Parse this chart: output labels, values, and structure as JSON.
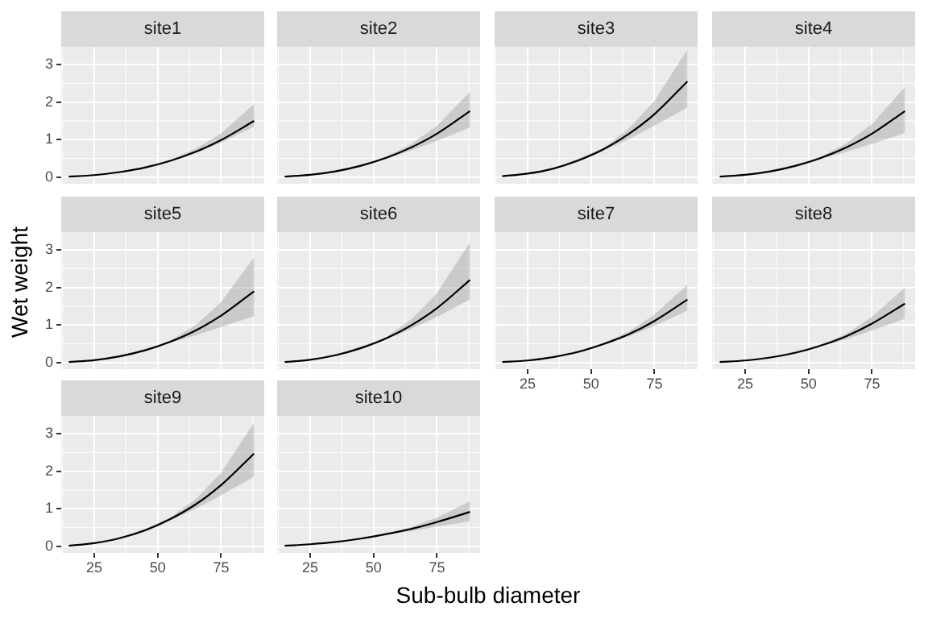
{
  "chart_data": [
    {
      "type": "line",
      "title": "site1",
      "x": [
        15,
        25,
        35,
        45,
        55,
        65,
        75,
        88
      ],
      "series": [
        {
          "color": "#000000",
          "values": [
            0.02,
            0.06,
            0.14,
            0.26,
            0.44,
            0.68,
            0.99,
            1.5
          ],
          "lower": [
            0.01,
            0.05,
            0.12,
            0.24,
            0.42,
            0.65,
            0.92,
            1.35
          ],
          "upper": [
            0.02,
            0.07,
            0.15,
            0.29,
            0.46,
            0.76,
            1.17,
            1.95
          ]
        }
      ],
      "xlim": [
        12,
        92
      ],
      "xticks": [
        25,
        50,
        75
      ],
      "ylim": [
        -0.17,
        3.47
      ],
      "yticks": [
        0,
        1,
        2,
        3
      ],
      "grid": true,
      "tick_labels": "y"
    },
    {
      "type": "line",
      "title": "site2",
      "x": [
        15,
        25,
        35,
        45,
        55,
        65,
        75,
        88
      ],
      "series": [
        {
          "color": "#000000",
          "values": [
            0.02,
            0.07,
            0.16,
            0.31,
            0.52,
            0.8,
            1.16,
            1.76
          ],
          "lower": [
            0.02,
            0.06,
            0.14,
            0.28,
            0.49,
            0.72,
            0.97,
            1.33
          ],
          "upper": [
            0.02,
            0.08,
            0.18,
            0.34,
            0.55,
            0.89,
            1.37,
            2.27
          ]
        }
      ],
      "xlim": [
        12,
        92
      ],
      "xticks": [
        25,
        50,
        75
      ],
      "ylim": [
        -0.17,
        3.47
      ],
      "yticks": [
        0,
        1,
        2,
        3
      ],
      "grid": true,
      "tick_labels": false
    },
    {
      "type": "line",
      "title": "site3",
      "x": [
        15,
        25,
        35,
        45,
        55,
        65,
        75,
        88
      ],
      "series": [
        {
          "color": "#000000",
          "values": [
            0.03,
            0.1,
            0.23,
            0.45,
            0.75,
            1.16,
            1.68,
            2.55
          ],
          "lower": [
            0.02,
            0.09,
            0.21,
            0.41,
            0.71,
            1.02,
            1.37,
            1.86
          ],
          "upper": [
            0.03,
            0.11,
            0.25,
            0.5,
            0.79,
            1.3,
            2.03,
            3.4
          ]
        }
      ],
      "xlim": [
        12,
        92
      ],
      "xticks": [
        25,
        50,
        75
      ],
      "ylim": [
        -0.17,
        3.47
      ],
      "yticks": [
        0,
        1,
        2,
        3
      ],
      "grid": true,
      "tick_labels": false
    },
    {
      "type": "line",
      "title": "site4",
      "x": [
        15,
        25,
        35,
        45,
        55,
        65,
        75,
        88
      ],
      "series": [
        {
          "color": "#000000",
          "values": [
            0.02,
            0.07,
            0.16,
            0.31,
            0.52,
            0.8,
            1.16,
            1.76
          ],
          "lower": [
            0.02,
            0.06,
            0.14,
            0.28,
            0.49,
            0.68,
            0.89,
            1.18
          ],
          "upper": [
            0.02,
            0.08,
            0.18,
            0.34,
            0.55,
            0.91,
            1.42,
            2.4
          ]
        }
      ],
      "xlim": [
        12,
        92
      ],
      "xticks": [
        25,
        50,
        75
      ],
      "ylim": [
        -0.17,
        3.47
      ],
      "yticks": [
        0,
        1,
        2,
        3
      ],
      "grid": true,
      "tick_labels": false
    },
    {
      "type": "line",
      "title": "site5",
      "ylabel": "Wet weight",
      "x": [
        15,
        25,
        35,
        45,
        55,
        65,
        75,
        88
      ],
      "series": [
        {
          "color": "#000000",
          "values": [
            0.02,
            0.07,
            0.17,
            0.33,
            0.56,
            0.86,
            1.25,
            1.9
          ],
          "lower": [
            0.02,
            0.06,
            0.15,
            0.3,
            0.53,
            0.73,
            0.95,
            1.24
          ],
          "upper": [
            0.02,
            0.08,
            0.19,
            0.36,
            0.59,
            1.0,
            1.61,
            2.8
          ]
        }
      ],
      "xlim": [
        12,
        92
      ],
      "xticks": [
        25,
        50,
        75
      ],
      "ylim": [
        -0.17,
        3.47
      ],
      "yticks": [
        0,
        1,
        2,
        3
      ],
      "grid": true,
      "tick_labels": "y"
    },
    {
      "type": "line",
      "title": "site6",
      "x": [
        15,
        25,
        35,
        45,
        55,
        65,
        75,
        88
      ],
      "series": [
        {
          "color": "#000000",
          "values": [
            0.02,
            0.08,
            0.2,
            0.39,
            0.65,
            1.0,
            1.45,
            2.2
          ],
          "lower": [
            0.02,
            0.07,
            0.18,
            0.35,
            0.62,
            0.9,
            1.22,
            1.68
          ],
          "upper": [
            0.02,
            0.09,
            0.22,
            0.43,
            0.68,
            1.16,
            1.85,
            3.2
          ]
        }
      ],
      "xlim": [
        12,
        92
      ],
      "xticks": [
        25,
        50,
        75
      ],
      "ylim": [
        -0.17,
        3.47
      ],
      "yticks": [
        0,
        1,
        2,
        3
      ],
      "grid": true,
      "tick_labels": false
    },
    {
      "type": "line",
      "title": "site7",
      "x": [
        15,
        25,
        35,
        45,
        55,
        65,
        75,
        88
      ],
      "series": [
        {
          "color": "#000000",
          "values": [
            0.02,
            0.06,
            0.15,
            0.29,
            0.5,
            0.76,
            1.11,
            1.68
          ],
          "lower": [
            0.02,
            0.05,
            0.14,
            0.26,
            0.47,
            0.7,
            0.98,
            1.39
          ],
          "upper": [
            0.02,
            0.07,
            0.17,
            0.32,
            0.53,
            0.83,
            1.28,
            2.08
          ]
        }
      ],
      "xlim": [
        12,
        92
      ],
      "xticks": [
        25,
        50,
        75
      ],
      "ylim": [
        -0.17,
        3.47
      ],
      "yticks": [
        0,
        1,
        2,
        3
      ],
      "grid": true,
      "tick_labels": "x"
    },
    {
      "type": "line",
      "title": "site8",
      "x": [
        15,
        25,
        35,
        45,
        55,
        65,
        75,
        88
      ],
      "series": [
        {
          "color": "#000000",
          "values": [
            0.02,
            0.06,
            0.14,
            0.27,
            0.46,
            0.71,
            1.04,
            1.57
          ],
          "lower": [
            0.02,
            0.05,
            0.13,
            0.24,
            0.44,
            0.63,
            0.86,
            1.17
          ],
          "upper": [
            0.02,
            0.07,
            0.15,
            0.3,
            0.48,
            0.78,
            1.22,
            2.0
          ]
        }
      ],
      "xlim": [
        12,
        92
      ],
      "xticks": [
        25,
        50,
        75
      ],
      "ylim": [
        -0.17,
        3.47
      ],
      "yticks": [
        0,
        1,
        2,
        3
      ],
      "grid": true,
      "tick_labels": "x"
    },
    {
      "type": "line",
      "title": "site9",
      "x": [
        15,
        25,
        35,
        45,
        55,
        65,
        75,
        88
      ],
      "series": [
        {
          "color": "#000000",
          "values": [
            0.02,
            0.09,
            0.22,
            0.43,
            0.73,
            1.12,
            1.63,
            2.47
          ],
          "lower": [
            0.02,
            0.08,
            0.2,
            0.39,
            0.69,
            1.0,
            1.36,
            1.86
          ],
          "upper": [
            0.03,
            0.1,
            0.24,
            0.47,
            0.77,
            1.26,
            1.96,
            3.29
          ]
        }
      ],
      "xlim": [
        12,
        92
      ],
      "xticks": [
        25,
        50,
        75
      ],
      "ylim": [
        -0.17,
        3.47
      ],
      "yticks": [
        0,
        1,
        2,
        3
      ],
      "grid": true
    },
    {
      "type": "line",
      "title": "site10",
      "xlabel": "Sub-bulb diameter",
      "x": [
        15,
        25,
        35,
        45,
        55,
        65,
        75,
        88
      ],
      "series": [
        {
          "color": "#000000",
          "values": [
            0.02,
            0.06,
            0.12,
            0.21,
            0.33,
            0.47,
            0.65,
            0.92
          ],
          "lower": [
            0.02,
            0.05,
            0.11,
            0.19,
            0.31,
            0.41,
            0.53,
            0.67
          ],
          "upper": [
            0.02,
            0.07,
            0.13,
            0.23,
            0.35,
            0.52,
            0.77,
            1.2
          ]
        }
      ],
      "xlim": [
        12,
        92
      ],
      "xticks": [
        25,
        50,
        75
      ],
      "ylim": [
        -0.17,
        3.47
      ],
      "yticks": [
        0,
        1,
        2,
        3
      ],
      "grid": true,
      "tick_labels": "x"
    }
  ]
}
